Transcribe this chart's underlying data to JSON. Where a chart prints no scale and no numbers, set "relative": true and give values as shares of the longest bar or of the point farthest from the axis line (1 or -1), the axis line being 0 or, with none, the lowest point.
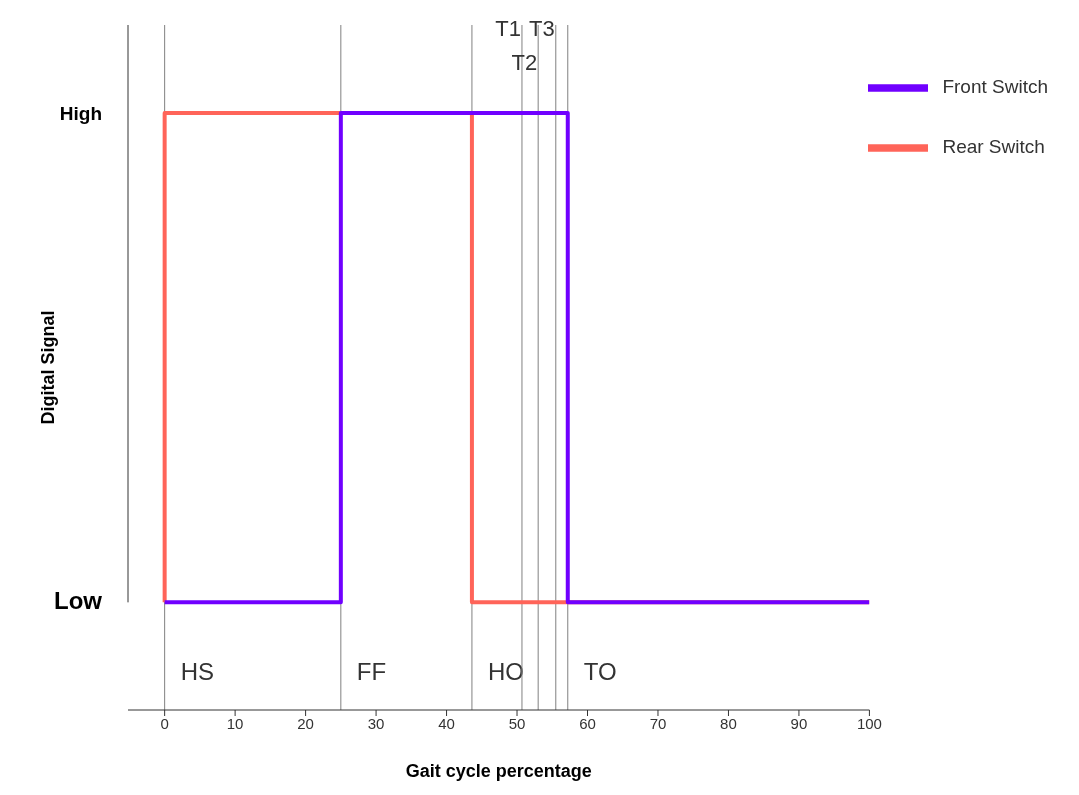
{
  "chart_data": {
    "type": "line",
    "xlabel": "Gait cycle percentage",
    "ylabel": "Digital Signal",
    "relative": true,
    "xlim": [
      -5.2,
      100
    ],
    "xticks": [
      0,
      10,
      20,
      30,
      40,
      50,
      60,
      70,
      80,
      90,
      100
    ],
    "series": [
      {
        "name": "Rear Switch",
        "color": "#ff6459",
        "x": [
          0,
          0,
          43.6,
          43.6,
          100
        ],
        "values": [
          0,
          1,
          1,
          0,
          0
        ]
      },
      {
        "name": "Front Switch",
        "color": "#7000ff",
        "x": [
          0,
          25,
          25,
          57.2,
          57.2,
          100
        ],
        "values": [
          0,
          0,
          1,
          1,
          0,
          0
        ]
      }
    ],
    "ref_lines": [
      {
        "axis": "x",
        "value": 0,
        "color": "#808080"
      },
      {
        "axis": "x",
        "value": 25,
        "color": "#808080"
      },
      {
        "axis": "x",
        "value": 43.6,
        "color": "#808080"
      },
      {
        "axis": "x",
        "value": 50.7,
        "label": "T1",
        "color": "#808080"
      },
      {
        "axis": "x",
        "value": 53,
        "label": "T2",
        "color": "#808080"
      },
      {
        "axis": "x",
        "value": 55.5,
        "label": "T3",
        "color": "#808080"
      },
      {
        "axis": "x",
        "value": 57.2,
        "color": "#808080"
      }
    ],
    "annotations": [
      "Low",
      "High",
      "HS",
      "FF",
      "HO",
      "TO"
    ],
    "legend": "top right",
    "marker": "none",
    "line_style": "solid"
  }
}
